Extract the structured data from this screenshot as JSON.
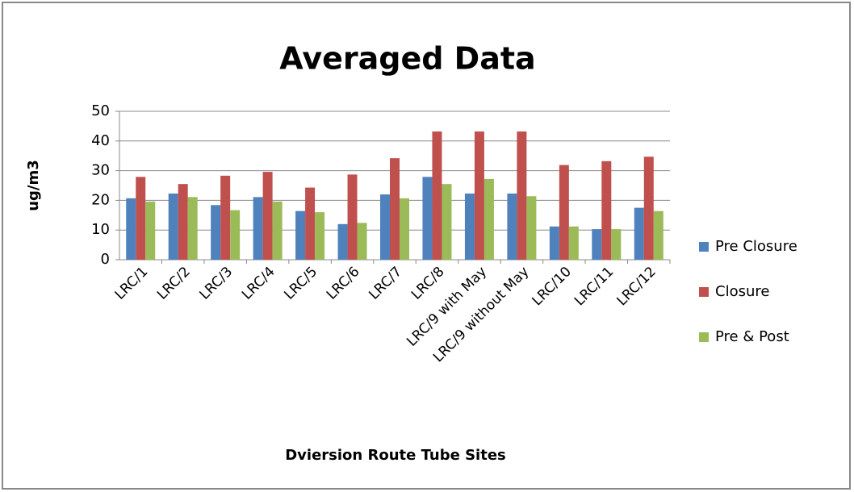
{
  "chart_data": {
    "type": "bar",
    "title": "Averaged Data",
    "x_label": "Dviersion Route Tube Sites",
    "y_label": "ug/m3",
    "categories": [
      "LRC/1",
      "LRC/2",
      "LRC/3",
      "LRC/4",
      "LRC/5",
      "LRC/6",
      "LRC/7",
      "LRC/8",
      "LRC/9 with May",
      "LRC/9 without May",
      "LRC/10",
      "LRC/11",
      "LRC/12"
    ],
    "series": [
      {
        "name": "Pre Closure",
        "color": "#4f81bd",
        "values": [
          20.7,
          22.3,
          18.4,
          21.1,
          16.4,
          12.0,
          22.0,
          27.9,
          22.3,
          22.3,
          11.2,
          10.3,
          17.5
        ]
      },
      {
        "name": "Closure",
        "color": "#c0504d",
        "values": [
          27.9,
          25.5,
          28.3,
          29.6,
          24.3,
          28.7,
          34.2,
          43.2,
          43.2,
          43.2,
          31.9,
          33.2,
          34.7
        ]
      },
      {
        "name": "Pre & Post",
        "color": "#9bbb59",
        "values": [
          19.6,
          21.1,
          16.7,
          19.6,
          16.0,
          12.4,
          20.7,
          25.5,
          27.2,
          21.4,
          11.2,
          10.3,
          16.4
        ]
      }
    ],
    "ylim": [
      0,
      50
    ],
    "yticks": [
      0,
      10,
      20,
      30,
      40,
      50
    ],
    "grid": true,
    "legend": "right"
  }
}
